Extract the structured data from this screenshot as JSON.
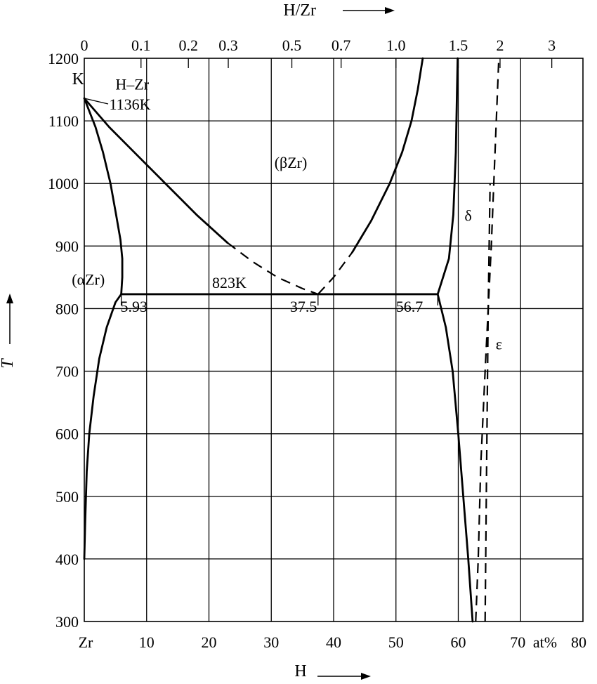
{
  "chart_data": {
    "type": "line",
    "title": "",
    "xlabel": "H",
    "x_unit_label": "at%",
    "ylabel": "T",
    "y_unit_label": "K",
    "top_axis_label": "H/Zr",
    "xlim": [
      0,
      80
    ],
    "ylim": [
      300,
      1200
    ],
    "x_ticks": [
      0,
      10,
      20,
      30,
      40,
      50,
      60,
      70,
      80
    ],
    "x_tick_labels": [
      "Zr",
      "10",
      "20",
      "30",
      "40",
      "50",
      "60",
      "70",
      "80"
    ],
    "y_ticks": [
      300,
      400,
      500,
      600,
      700,
      800,
      900,
      1000,
      1100,
      1200
    ],
    "y_tick_labels": [
      "300",
      "400",
      "500",
      "600",
      "700",
      "800",
      "900",
      "1000",
      "1100",
      "1200"
    ],
    "top_ticks": [
      {
        "label": "0",
        "at": 0
      },
      {
        "label": "0.1",
        "at": 9.1
      },
      {
        "label": "0.2",
        "at": 16.7
      },
      {
        "label": "0.3",
        "at": 23.1
      },
      {
        "label": "0.5",
        "at": 33.3
      },
      {
        "label": "0.7",
        "at": 41.2
      },
      {
        "label": "1.0",
        "at": 50.0
      },
      {
        "label": "1.5",
        "at": 60.0
      },
      {
        "label": "2",
        "at": 66.7
      },
      {
        "label": "3",
        "at": 75.0
      }
    ],
    "grid": true,
    "series": [
      {
        "style": "solid",
        "points": [
          [
            0,
            400
          ],
          [
            0.15,
            460
          ],
          [
            0.4,
            540
          ],
          [
            0.8,
            600
          ],
          [
            1.5,
            660
          ],
          [
            2.4,
            720
          ],
          [
            3.6,
            770
          ],
          [
            5.0,
            810
          ],
          [
            5.93,
            823
          ]
        ]
      },
      {
        "style": "solid",
        "points": [
          [
            5.93,
            823
          ],
          [
            6.1,
            850
          ],
          [
            6.1,
            880
          ],
          [
            5.8,
            910
          ],
          [
            5.1,
            950
          ],
          [
            4.2,
            1000
          ],
          [
            3.0,
            1050
          ],
          [
            1.8,
            1090
          ],
          [
            0,
            1136
          ]
        ]
      },
      {
        "style": "solid",
        "points": [
          [
            0,
            1136
          ],
          [
            4,
            1090
          ],
          [
            8,
            1050
          ],
          [
            13,
            1000
          ],
          [
            18,
            950
          ],
          [
            23,
            905
          ]
        ]
      },
      {
        "style": "dashed",
        "points": [
          [
            23,
            905
          ],
          [
            27,
            875
          ],
          [
            31,
            850
          ],
          [
            35,
            832
          ],
          [
            37.5,
            823
          ]
        ]
      },
      {
        "style": "dashed",
        "points": [
          [
            37.5,
            823
          ],
          [
            40,
            850
          ],
          [
            43,
            890
          ]
        ]
      },
      {
        "style": "solid",
        "points": [
          [
            43,
            890
          ],
          [
            46,
            940
          ],
          [
            49,
            1000
          ],
          [
            51,
            1050
          ],
          [
            52.5,
            1100
          ],
          [
            53.5,
            1150
          ],
          [
            54.3,
            1200
          ]
        ]
      },
      {
        "style": "solid",
        "points": [
          [
            56.7,
            823
          ],
          [
            58.5,
            880
          ],
          [
            59.2,
            950
          ],
          [
            59.6,
            1050
          ],
          [
            59.8,
            1150
          ],
          [
            59.9,
            1200
          ]
        ]
      },
      {
        "style": "solid",
        "points": [
          [
            56.7,
            823
          ],
          [
            58.0,
            770
          ],
          [
            59.1,
            700
          ],
          [
            60.0,
            600
          ],
          [
            60.8,
            500
          ],
          [
            61.6,
            400
          ],
          [
            62.3,
            300
          ]
        ]
      },
      {
        "style": "dashed",
        "points": [
          [
            62.8,
            300
          ],
          [
            63.2,
            400
          ],
          [
            63.6,
            550
          ],
          [
            64.3,
            700
          ],
          [
            65.3,
            900
          ],
          [
            66.1,
            1100
          ],
          [
            66.5,
            1200
          ]
        ]
      },
      {
        "style": "dashed",
        "points": [
          [
            64.3,
            300
          ],
          [
            64.5,
            500
          ],
          [
            64.8,
            800
          ],
          [
            65.1,
            1000
          ]
        ]
      }
    ],
    "annotations": [
      {
        "text": "H–Zr",
        "x": 5.0,
        "y": 1150
      },
      {
        "text": "1136K",
        "x": 4.0,
        "y": 1118
      },
      {
        "text": "(βZr)",
        "x": 30.5,
        "y": 1025
      },
      {
        "text": "δ",
        "x": 61.0,
        "y": 940
      },
      {
        "text": "(αZr)",
        "x": -2.0,
        "y": 838
      },
      {
        "text": "823K",
        "x": 20.5,
        "y": 833
      },
      {
        "text": "5.93",
        "x": 5.8,
        "y": 795
      },
      {
        "text": "37.5",
        "x": 33.0,
        "y": 795
      },
      {
        "text": "56.7",
        "x": 50.0,
        "y": 795
      },
      {
        "text": "ε",
        "x": 66.0,
        "y": 735
      }
    ],
    "special_point": {
      "label": "1136K",
      "x": 0,
      "y": 1136
    },
    "invariant": {
      "y": 823,
      "x_start": 5.93,
      "x_end": 56.7,
      "marks": [
        5.93,
        37.5,
        56.7
      ]
    }
  }
}
